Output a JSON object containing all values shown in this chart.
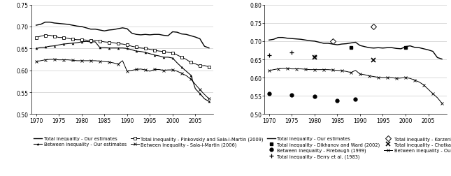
{
  "left_panel": {
    "xlim": [
      1969,
      2009
    ],
    "ylim": [
      0.5,
      0.75
    ],
    "yticks": [
      0.5,
      0.55,
      0.6,
      0.65,
      0.7,
      0.75
    ],
    "xticks": [
      1970,
      1975,
      1980,
      1985,
      1990,
      1995,
      2000,
      2005
    ],
    "total_our": {
      "x": [
        1970,
        1971,
        1972,
        1973,
        1974,
        1975,
        1976,
        1977,
        1978,
        1979,
        1980,
        1981,
        1982,
        1983,
        1984,
        1985,
        1986,
        1987,
        1988,
        1989,
        1990,
        1991,
        1992,
        1993,
        1994,
        1995,
        1996,
        1997,
        1998,
        1999,
        2000,
        2001,
        2002,
        2003,
        2004,
        2005,
        2006,
        2007,
        2008
      ],
      "y": [
        0.703,
        0.705,
        0.71,
        0.71,
        0.708,
        0.707,
        0.706,
        0.705,
        0.703,
        0.701,
        0.7,
        0.697,
        0.694,
        0.694,
        0.692,
        0.69,
        0.692,
        0.693,
        0.695,
        0.697,
        0.695,
        0.685,
        0.682,
        0.681,
        0.682,
        0.681,
        0.682,
        0.682,
        0.68,
        0.679,
        0.688,
        0.687,
        0.683,
        0.682,
        0.679,
        0.676,
        0.672,
        0.655,
        0.651
      ]
    },
    "between_our": {
      "x": [
        1970,
        1971,
        1972,
        1973,
        1974,
        1975,
        1976,
        1977,
        1978,
        1979,
        1980,
        1981,
        1982,
        1983,
        1984,
        1985,
        1986,
        1987,
        1988,
        1989,
        1990,
        1991,
        1992,
        1993,
        1994,
        1995,
        1996,
        1997,
        1998,
        1999,
        2000,
        2001,
        2002,
        2003,
        2004,
        2005,
        2006,
        2007,
        2008
      ],
      "y": [
        0.65,
        0.652,
        0.653,
        0.655,
        0.656,
        0.658,
        0.66,
        0.661,
        0.662,
        0.663,
        0.665,
        0.666,
        0.665,
        0.665,
        0.652,
        0.652,
        0.651,
        0.651,
        0.651,
        0.651,
        0.65,
        0.647,
        0.644,
        0.643,
        0.641,
        0.638,
        0.635,
        0.633,
        0.63,
        0.63,
        0.628,
        0.617,
        0.607,
        0.598,
        0.589,
        0.558,
        0.547,
        0.535,
        0.529
      ]
    },
    "total_pinkovskiy": {
      "x": [
        1970,
        1971,
        1972,
        1973,
        1974,
        1975,
        1976,
        1977,
        1978,
        1979,
        1980,
        1981,
        1982,
        1983,
        1984,
        1985,
        1986,
        1987,
        1988,
        1989,
        1990,
        1991,
        1992,
        1993,
        1994,
        1995,
        1996,
        1997,
        1998,
        1999,
        2000,
        2001,
        2002,
        2003,
        2004,
        2005,
        2006,
        2007,
        2008
      ],
      "y": [
        0.675,
        0.678,
        0.68,
        0.68,
        0.678,
        0.675,
        0.675,
        0.673,
        0.671,
        0.67,
        0.67,
        0.669,
        0.668,
        0.668,
        0.667,
        0.665,
        0.664,
        0.663,
        0.661,
        0.66,
        0.658,
        0.655,
        0.653,
        0.651,
        0.65,
        0.648,
        0.646,
        0.644,
        0.643,
        0.641,
        0.64,
        0.635,
        0.63,
        0.625,
        0.618,
        0.615,
        0.61,
        0.611,
        0.608
      ]
    },
    "between_sala": {
      "x": [
        1970,
        1971,
        1972,
        1973,
        1974,
        1975,
        1976,
        1977,
        1978,
        1979,
        1980,
        1981,
        1982,
        1983,
        1984,
        1985,
        1986,
        1987,
        1988,
        1989,
        1990,
        1991,
        1992,
        1993,
        1994,
        1995,
        1996,
        1997,
        1998,
        1999,
        2000,
        2001,
        2002,
        2003,
        2004,
        2005,
        2006,
        2007,
        2008
      ],
      "y": [
        0.62,
        0.622,
        0.624,
        0.625,
        0.625,
        0.624,
        0.624,
        0.624,
        0.623,
        0.622,
        0.622,
        0.622,
        0.622,
        0.622,
        0.621,
        0.62,
        0.619,
        0.617,
        0.614,
        0.622,
        0.598,
        0.6,
        0.602,
        0.603,
        0.601,
        0.598,
        0.602,
        0.602,
        0.6,
        0.601,
        0.601,
        0.598,
        0.593,
        0.588,
        0.58,
        0.568,
        0.556,
        0.545,
        0.535
      ]
    }
  },
  "right_panel": {
    "xlim": [
      1969,
      2009
    ],
    "ylim": [
      0.5,
      0.8
    ],
    "yticks": [
      0.5,
      0.55,
      0.6,
      0.65,
      0.7,
      0.75,
      0.8
    ],
    "xticks": [
      1970,
      1975,
      1980,
      1985,
      1990,
      1995,
      2000,
      2005
    ],
    "total_our": {
      "x": [
        1970,
        1971,
        1972,
        1973,
        1974,
        1975,
        1976,
        1977,
        1978,
        1979,
        1980,
        1981,
        1982,
        1983,
        1984,
        1985,
        1986,
        1987,
        1988,
        1989,
        1990,
        1991,
        1992,
        1993,
        1994,
        1995,
        1996,
        1997,
        1998,
        1999,
        2000,
        2001,
        2002,
        2003,
        2004,
        2005,
        2006,
        2007,
        2008
      ],
      "y": [
        0.703,
        0.705,
        0.71,
        0.71,
        0.708,
        0.707,
        0.706,
        0.705,
        0.703,
        0.701,
        0.7,
        0.697,
        0.694,
        0.694,
        0.692,
        0.69,
        0.692,
        0.693,
        0.695,
        0.697,
        0.688,
        0.685,
        0.682,
        0.681,
        0.682,
        0.681,
        0.682,
        0.682,
        0.68,
        0.679,
        0.685,
        0.687,
        0.683,
        0.682,
        0.679,
        0.676,
        0.672,
        0.655,
        0.651
      ]
    },
    "between_our": {
      "x": [
        1970,
        1971,
        1972,
        1973,
        1974,
        1975,
        1976,
        1977,
        1978,
        1979,
        1980,
        1981,
        1982,
        1983,
        1984,
        1985,
        1986,
        1987,
        1988,
        1989,
        1990,
        1991,
        1992,
        1993,
        1994,
        1995,
        1996,
        1997,
        1998,
        1999,
        2000,
        2001,
        2002,
        2003,
        2004,
        2005,
        2006,
        2007,
        2008
      ],
      "y": [
        0.619,
        0.622,
        0.624,
        0.625,
        0.625,
        0.624,
        0.624,
        0.624,
        0.623,
        0.622,
        0.622,
        0.622,
        0.622,
        0.622,
        0.621,
        0.62,
        0.619,
        0.617,
        0.614,
        0.62,
        0.61,
        0.608,
        0.605,
        0.603,
        0.601,
        0.6,
        0.6,
        0.6,
        0.598,
        0.599,
        0.6,
        0.598,
        0.593,
        0.588,
        0.58,
        0.568,
        0.556,
        0.545,
        0.53
      ]
    },
    "firebaugh_between": {
      "x": [
        1970,
        1975,
        1980,
        1985,
        1989
      ],
      "y": [
        0.557,
        0.553,
        0.548,
        0.537,
        0.541
      ]
    },
    "korzeniewicz_diamond": {
      "x": [
        1984,
        1993
      ],
      "y": [
        0.7,
        0.74
      ]
    },
    "berry_total": {
      "x": [
        1970,
        1975,
        1980
      ],
      "y": [
        0.662,
        0.669,
        0.658
      ]
    },
    "dikhanov_total": {
      "x": [
        1988,
        2000
      ],
      "y": [
        0.683,
        0.683
      ]
    },
    "chotkapanich_total": {
      "x": [
        1980,
        1993
      ],
      "y": [
        0.656,
        0.649
      ]
    }
  }
}
